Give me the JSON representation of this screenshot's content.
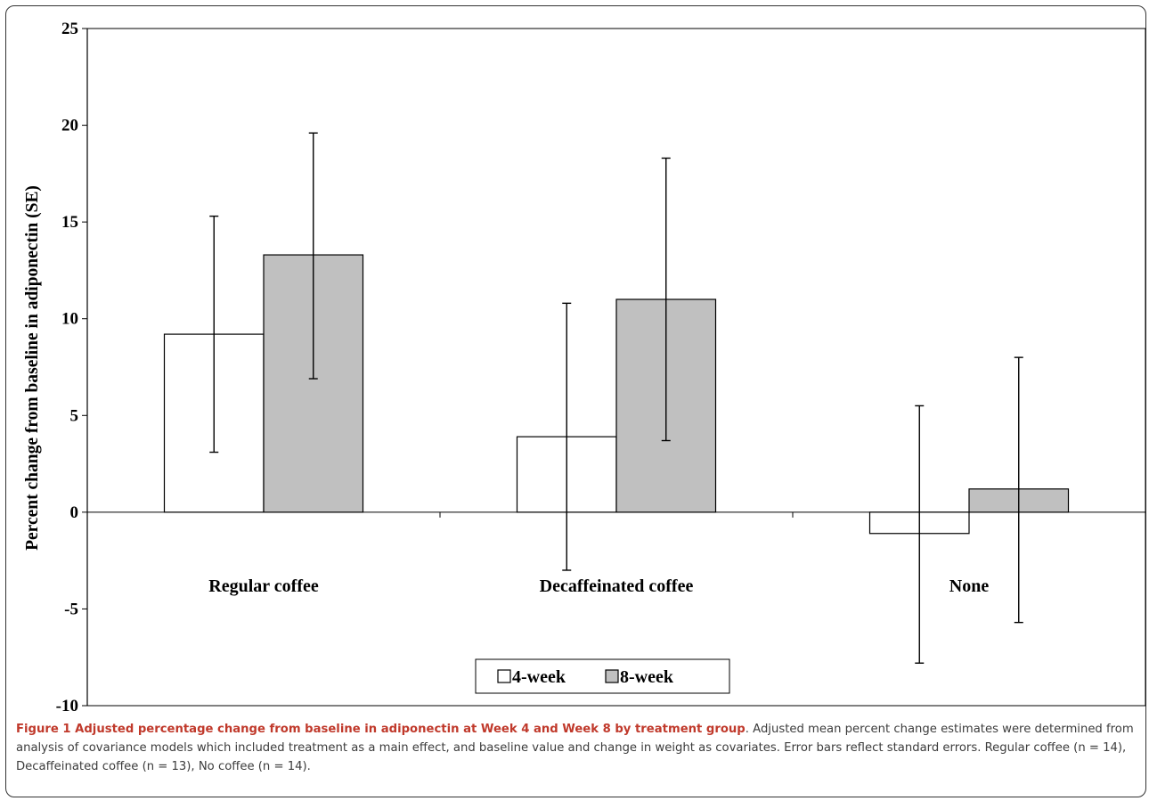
{
  "chart_data": {
    "type": "bar",
    "title": "",
    "xlabel": "",
    "ylabel": "Percent change from baseline in adiponectin (SE)",
    "ylim": [
      -10,
      25
    ],
    "yticks": [
      25,
      20,
      15,
      10,
      5,
      0,
      -5,
      -10
    ],
    "categories": [
      "Regular coffee",
      "Decaffeinated coffee",
      "None"
    ],
    "series": [
      {
        "name": "4-week",
        "color": "#ffffff",
        "values": [
          9.2,
          3.9,
          -1.1
        ],
        "err_upper": [
          15.3,
          10.8,
          5.5
        ],
        "err_lower": [
          3.1,
          -3.0,
          -7.8
        ]
      },
      {
        "name": "8-week",
        "color": "#c0c0c0",
        "values": [
          13.3,
          11.0,
          1.2
        ],
        "err_upper": [
          19.6,
          18.3,
          8.0
        ],
        "err_lower": [
          6.9,
          3.7,
          -5.7
        ]
      }
    ],
    "grid": false,
    "legend_placement": "bottom-center"
  },
  "caption": {
    "lead": "Figure 1 Adjusted percentage change from baseline in adiponectin at Week 4 and Week 8 by treatment group",
    "body": ". Adjusted mean percent change estimates were determined from analysis of covariance models which included treatment as a main effect, and baseline value and change in weight as covariates. Error bars reflect standard errors. Regular coffee (n = 14), Decaffeinated coffee (n = 13), No coffee (n = 14)."
  }
}
